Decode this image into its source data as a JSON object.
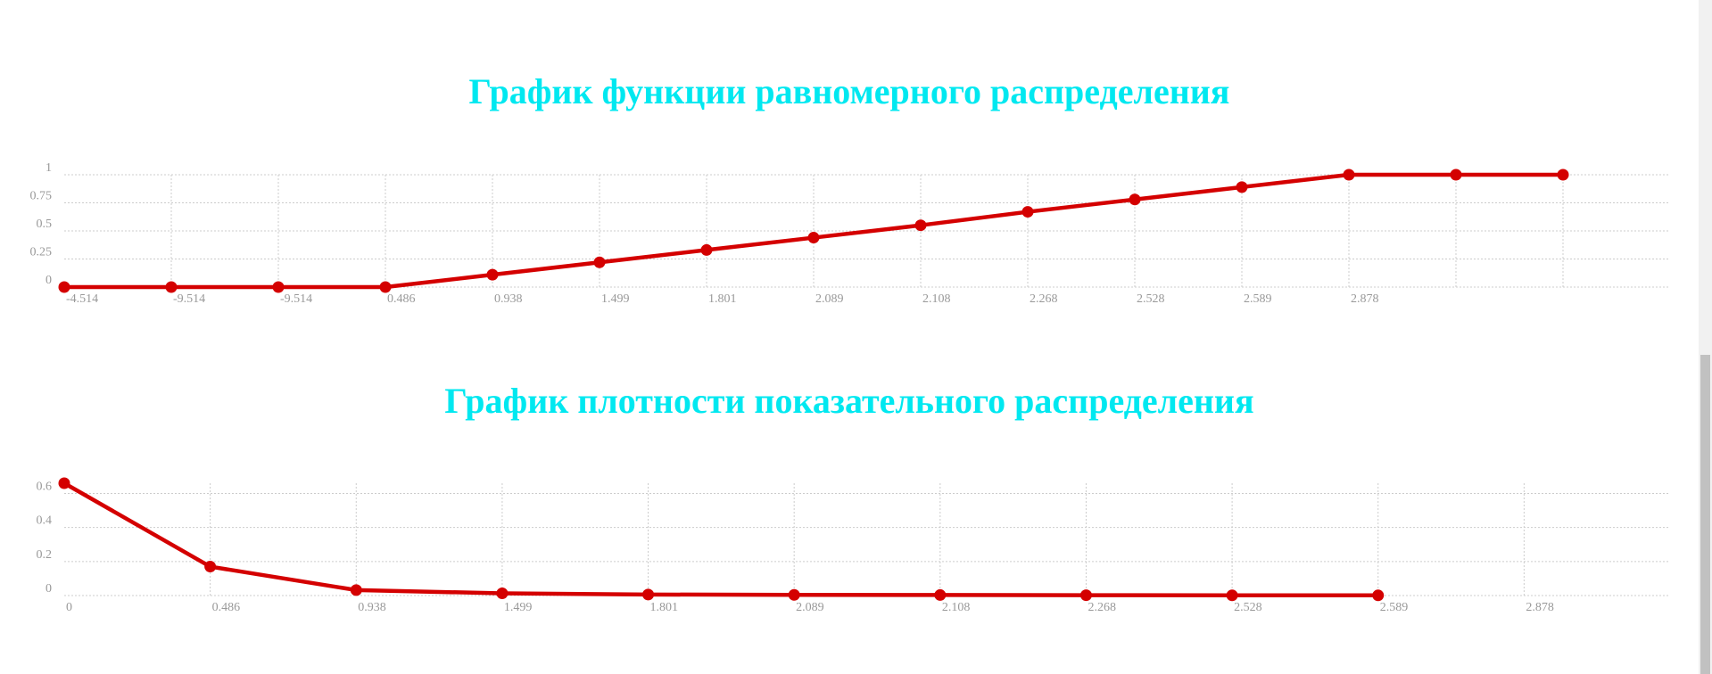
{
  "chart_data": [
    {
      "type": "line",
      "title": "График функции равномерного распределения",
      "categories": [
        "-4.514",
        "-9.514",
        "-9.514",
        "0.486",
        "0.938",
        "1.499",
        "1.801",
        "2.089",
        "2.108",
        "2.268",
        "2.528",
        "2.589",
        "2.878",
        null,
        null
      ],
      "series": [
        {
          "color": "#d40000",
          "values": [
            0,
            0,
            0,
            0,
            0.11,
            0.22,
            0.33,
            0.44,
            0.55,
            0.67,
            0.78,
            0.89,
            1,
            1,
            1
          ]
        }
      ],
      "ylim": [
        0,
        1
      ],
      "yticks": [
        0,
        0.25,
        0.5,
        0.75,
        1
      ],
      "grid": true
    },
    {
      "type": "line",
      "title": "График плотности показательного распределения",
      "categories": [
        "0",
        "0.486",
        "0.938",
        "1.499",
        "1.801",
        "2.089",
        "2.108",
        "2.268",
        "2.528",
        "2.589",
        "2.878"
      ],
      "series": [
        {
          "color": "#d40000",
          "values": [
            0.66,
            0.17,
            0.032,
            0.013,
            0.006,
            0.004,
            0.003,
            0.002,
            0.001,
            0.001,
            null
          ]
        }
      ],
      "ylim": [
        0,
        0.66
      ],
      "yticks": [
        0,
        0.2,
        0.4,
        0.6
      ],
      "grid": true
    }
  ]
}
